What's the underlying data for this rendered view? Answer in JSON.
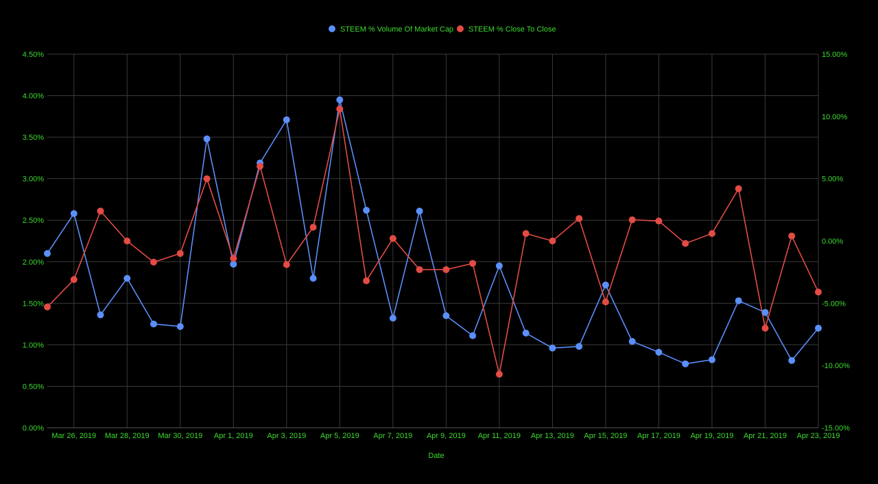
{
  "chart_data": {
    "type": "line",
    "xlabel": "Date",
    "x_tick_labels": [
      "Mar 26, 2019",
      "Mar 28, 2019",
      "Mar 30, 2019",
      "Apr 1, 2019",
      "Apr 3, 2019",
      "Apr 5, 2019",
      "Apr 7, 2019",
      "Apr 9, 2019",
      "Apr 11, 2019",
      "Apr 13, 2019",
      "Apr 15, 2019",
      "Apr 17, 2019",
      "Apr 19, 2019",
      "Apr 21, 2019",
      "Apr 23, 2019"
    ],
    "x": [
      "2019-03-25",
      "2019-03-26",
      "2019-03-27",
      "2019-03-28",
      "2019-03-29",
      "2019-03-30",
      "2019-03-31",
      "2019-04-01",
      "2019-04-02",
      "2019-04-03",
      "2019-04-04",
      "2019-04-05",
      "2019-04-06",
      "2019-04-07",
      "2019-04-08",
      "2019-04-09",
      "2019-04-10",
      "2019-04-11",
      "2019-04-12",
      "2019-04-13",
      "2019-04-14",
      "2019-04-15",
      "2019-04-16",
      "2019-04-17",
      "2019-04-18",
      "2019-04-19",
      "2019-04-20",
      "2019-04-21",
      "2019-04-22",
      "2019-04-23"
    ],
    "xlim": [
      "2019-03-25",
      "2019-04-23"
    ],
    "left_axis": {
      "ticks": [
        "0.00%",
        "0.50%",
        "1.00%",
        "1.50%",
        "2.00%",
        "2.50%",
        "3.00%",
        "3.50%",
        "4.00%",
        "4.50%"
      ],
      "ylim": [
        0,
        4.5
      ]
    },
    "right_axis": {
      "ticks": [
        "-15.00%",
        "-10.00%",
        "-5.00%",
        "0.00%",
        "5.00%",
        "10.00%",
        "15.00%"
      ],
      "ylim": [
        -15,
        15
      ]
    },
    "series": [
      {
        "name": "STEEM % Volume Of Market Cap",
        "axis": "left",
        "color": "#5b8ff9",
        "values": [
          2.1,
          2.58,
          1.36,
          1.8,
          1.25,
          1.22,
          3.48,
          1.97,
          3.19,
          3.71,
          1.8,
          3.95,
          2.62,
          1.32,
          2.61,
          1.35,
          1.11,
          1.95,
          1.14,
          0.96,
          0.98,
          1.72,
          1.04,
          0.91,
          0.77,
          0.82,
          1.53,
          1.39,
          0.81,
          1.2
        ]
      },
      {
        "name": "STEEM % Close To Close",
        "axis": "right",
        "color": "#e34b45",
        "values": [
          -5.3,
          -3.1,
          2.4,
          0.0,
          -1.7,
          -1.0,
          5.0,
          -1.4,
          6.0,
          -1.9,
          1.1,
          10.6,
          -3.2,
          0.2,
          -2.3,
          -2.3,
          -1.8,
          -10.7,
          0.6,
          0.0,
          1.8,
          -4.9,
          1.7,
          1.6,
          -0.2,
          0.6,
          4.2,
          -7.0,
          0.4,
          -4.1
        ]
      }
    ],
    "grid": true,
    "legend": "top-center"
  },
  "colors": {
    "background": "#000000",
    "text": "#3ddc2e",
    "grid": "#3a3a3a"
  }
}
